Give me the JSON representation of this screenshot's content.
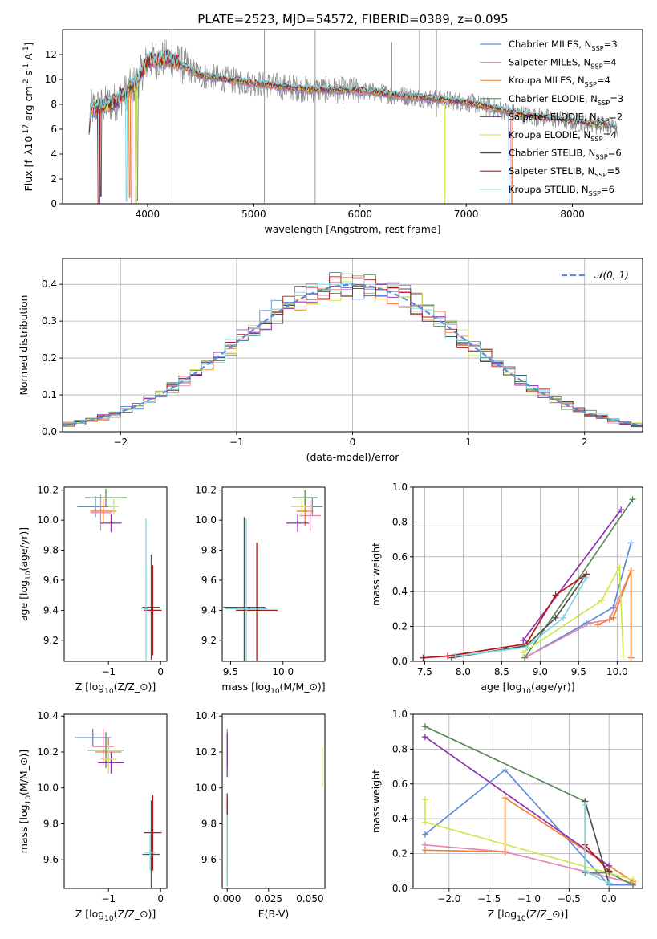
{
  "title": "PLATE=2523, MJD=54572, FIBERID=0389, z=0.095",
  "colors": [
    "#5b8bd9",
    "#e487b4",
    "#f08030",
    "#5a8a5a",
    "#9030b0",
    "#d0e850",
    "#505050",
    "#b01818",
    "#80d8e0"
  ],
  "legend_spectrum": [
    "Chabrier MILES, N_{SSP}=3",
    "Salpeter MILES, N_{SSP}=4",
    "Kroupa MILES, N_{SSP}=4",
    "Chabrier ELODIE, N_{SSP}=3",
    "Salpeter ELODIE, N_{SSP}=2",
    "Kroupa ELODIE, N_{SSP}=4",
    "Chabrier STELIB, N_{SSP}=6",
    "Salpeter STELIB, N_{SSP}=5",
    "Kroupa STELIB, N_{SSP}=6"
  ],
  "legend_residual": "𝒩(0, 1)",
  "chart_data": [
    {
      "type": "line",
      "id": "spectrum",
      "title": "PLATE=2523, MJD=54572, FIBERID=0389, z=0.095",
      "xlabel": "wavelength [Angstrom, rest frame]",
      "ylabel": "Flux [f_λ10^{-17} erg cm^{-2} s^{-1} A^{-1}]",
      "xlim": [
        3200,
        8660
      ],
      "ylim": [
        0,
        14
      ],
      "xticks": [
        4000,
        5000,
        6000,
        7000,
        8000
      ],
      "yticks": [
        0,
        2,
        4,
        6,
        8,
        10,
        12
      ],
      "continuum": [
        [
          3460,
          7.6
        ],
        [
          3700,
          8.2
        ],
        [
          3900,
          9.8
        ],
        [
          4000,
          11.5
        ],
        [
          4200,
          11.7
        ],
        [
          4500,
          10.3
        ],
        [
          5000,
          9.7
        ],
        [
          5500,
          9.2
        ],
        [
          6000,
          9.1
        ],
        [
          6500,
          8.6
        ],
        [
          7000,
          8.2
        ],
        [
          7500,
          7.2
        ],
        [
          8000,
          6.6
        ],
        [
          8400,
          6.2
        ]
      ],
      "grid": false,
      "legend": "upper right"
    },
    {
      "type": "line",
      "id": "residuals",
      "xlabel": "(data-model)/error",
      "ylabel": "Normed distribution",
      "xlim": [
        -2.5,
        2.5
      ],
      "ylim": [
        0,
        0.47
      ],
      "xticks": [
        -2,
        -1,
        0,
        1,
        2
      ],
      "yticks": [
        0.0,
        0.1,
        0.2,
        0.3,
        0.4
      ],
      "bins": 50,
      "grid": true,
      "legend": "upper right"
    },
    {
      "type": "scatter",
      "id": "age_vs_Z",
      "xlabel": "Z [log_{10}(Z/Z_⊙)]",
      "ylabel": "age  [log_{10}(age/yr)]",
      "xlim": [
        -1.85,
        0.12
      ],
      "ylim": [
        9.06,
        10.22
      ],
      "xticks": [
        -1,
        0
      ],
      "yticks": [
        9.2,
        9.4,
        9.6,
        9.8,
        10.0,
        10.2
      ],
      "points": [
        {
          "x": -1.25,
          "y": 10.09,
          "xerr": 0.35,
          "yerr": 0.07,
          "c": 0
        },
        {
          "x": -1.15,
          "y": 10.05,
          "xerr": 0.2,
          "yerr": 0.12,
          "c": 1
        },
        {
          "x": -1.1,
          "y": 10.06,
          "xerr": 0.25,
          "yerr": 0.08,
          "c": 2
        },
        {
          "x": -1.05,
          "y": 10.15,
          "xerr": 0.4,
          "yerr": 0.06,
          "c": 3
        },
        {
          "x": -0.95,
          "y": 9.98,
          "xerr": 0.2,
          "yerr": 0.06,
          "c": 4
        },
        {
          "x": -0.9,
          "y": 10.09,
          "xerr": 0.1,
          "yerr": 0.05,
          "c": 5
        },
        {
          "x": -0.18,
          "y": 9.42,
          "xerr": 0.17,
          "yerr": 0.35,
          "c": 6
        },
        {
          "x": -0.15,
          "y": 9.4,
          "xerr": 0.17,
          "yerr": 0.3,
          "c": 7
        },
        {
          "x": -0.28,
          "y": 9.41,
          "xerr": 0.04,
          "yerr": 0.6,
          "c": 8
        }
      ]
    },
    {
      "type": "scatter",
      "id": "age_vs_mass",
      "xlabel": "mass [log_{10}(M/M_⊙)]",
      "ylabel": "",
      "xlim": [
        9.42,
        10.4
      ],
      "ylim": [
        9.06,
        10.22
      ],
      "xticks": [
        9.5,
        10.0
      ],
      "yticks": [
        9.2,
        9.4,
        9.6,
        9.8,
        10.0,
        10.2
      ],
      "points": [
        {
          "x": 10.28,
          "y": 10.09,
          "xerr": 0.1,
          "yerr": 0.06,
          "c": 0
        },
        {
          "x": 10.26,
          "y": 10.03,
          "xerr": 0.1,
          "yerr": 0.1,
          "c": 1
        },
        {
          "x": 10.21,
          "y": 10.06,
          "xerr": 0.08,
          "yerr": 0.1,
          "c": 2
        },
        {
          "x": 10.21,
          "y": 10.15,
          "xerr": 0.12,
          "yerr": 0.05,
          "c": 3
        },
        {
          "x": 10.14,
          "y": 9.98,
          "xerr": 0.11,
          "yerr": 0.06,
          "c": 4
        },
        {
          "x": 10.18,
          "y": 10.09,
          "xerr": 0.1,
          "yerr": 0.05,
          "c": 5
        },
        {
          "x": 9.63,
          "y": 9.42,
          "xerr": 0.2,
          "yerr": 0.6,
          "c": 6
        },
        {
          "x": 9.75,
          "y": 9.4,
          "xerr": 0.2,
          "yerr": 0.45,
          "c": 7
        },
        {
          "x": 9.65,
          "y": 9.41,
          "xerr": 0.2,
          "yerr": 0.6,
          "c": 8
        }
      ]
    },
    {
      "type": "line",
      "id": "mw_vs_age",
      "xlabel": "age  [log_{10}(age/yr)]",
      "ylabel": "mass weight",
      "xlim": [
        7.35,
        10.33
      ],
      "ylim": [
        0.0,
        1.0
      ],
      "xticks": [
        7.5,
        8.0,
        8.5,
        9.0,
        9.5,
        10.0
      ],
      "yticks": [
        0.0,
        0.2,
        0.4,
        0.6,
        0.8,
        1.0
      ],
      "grid": true,
      "series": [
        {
          "c": 0,
          "x": [
            8.8,
            9.6,
            9.95,
            10.18
          ],
          "y": [
            0.02,
            0.22,
            0.31,
            0.68
          ]
        },
        {
          "c": 1,
          "x": [
            8.8,
            9.65,
            9.9,
            10.18
          ],
          "y": [
            0.02,
            0.22,
            0.24,
            0.52
          ]
        },
        {
          "c": 2,
          "x": [
            9.75,
            9.95,
            10.18,
            10.18
          ],
          "y": [
            0.21,
            0.25,
            0.52,
            0.02
          ]
        },
        {
          "c": 3,
          "x": [
            8.8,
            10.2
          ],
          "y": [
            0.02,
            0.93
          ]
        },
        {
          "c": 4,
          "x": [
            8.78,
            10.05
          ],
          "y": [
            0.12,
            0.87
          ]
        },
        {
          "c": 5,
          "x": [
            8.78,
            9.8,
            10.03,
            10.08
          ],
          "y": [
            0.05,
            0.35,
            0.54,
            0.03
          ]
        },
        {
          "c": 6,
          "x": [
            7.85,
            8.82,
            9.2,
            9.6
          ],
          "y": [
            0.02,
            0.09,
            0.25,
            0.5
          ]
        },
        {
          "c": 7,
          "x": [
            7.48,
            7.8,
            8.82,
            9.2,
            9.6
          ],
          "y": [
            0.02,
            0.03,
            0.1,
            0.38,
            0.5
          ]
        },
        {
          "c": 8,
          "x": [
            7.9,
            8.82,
            9.3,
            9.6
          ],
          "y": [
            0.03,
            0.08,
            0.25,
            0.48
          ]
        }
      ]
    },
    {
      "type": "scatter",
      "id": "mass_vs_Z",
      "xlabel": "Z [log_{10}(Z/Z_⊙)]",
      "ylabel": "mass [log_{10}(M/M_⊙)]",
      "xlim": [
        -1.85,
        0.12
      ],
      "ylim": [
        9.44,
        10.41
      ],
      "xticks": [
        -1,
        0
      ],
      "yticks": [
        9.6,
        9.8,
        10.0,
        10.2,
        10.4
      ],
      "points": [
        {
          "x": -1.3,
          "y": 10.28,
          "xerr": 0.35,
          "yerr": 0.05,
          "c": 0
        },
        {
          "x": -1.1,
          "y": 10.23,
          "xerr": 0.2,
          "yerr": 0.1,
          "c": 1
        },
        {
          "x": -1.0,
          "y": 10.2,
          "xerr": 0.25,
          "yerr": 0.08,
          "c": 2
        },
        {
          "x": -1.05,
          "y": 10.21,
          "xerr": 0.35,
          "yerr": 0.1,
          "c": 3
        },
        {
          "x": -0.95,
          "y": 10.14,
          "xerr": 0.25,
          "yerr": 0.06,
          "c": 4
        },
        {
          "x": -1.0,
          "y": 10.16,
          "xerr": 0.15,
          "yerr": 0.08,
          "c": 5
        },
        {
          "x": -0.18,
          "y": 9.63,
          "xerr": 0.17,
          "yerr": 0.3,
          "c": 6
        },
        {
          "x": -0.15,
          "y": 9.75,
          "xerr": 0.17,
          "yerr": 0.21,
          "c": 7
        },
        {
          "x": -0.2,
          "y": 9.64,
          "xerr": 0.1,
          "yerr": 0.1,
          "c": 8
        }
      ]
    },
    {
      "type": "scatter",
      "id": "mass_vs_ebv",
      "xlabel": "E(B-V)",
      "ylabel": "",
      "xlim": [
        -0.003,
        0.059
      ],
      "ylim": [
        9.44,
        10.41
      ],
      "xticks": [
        0.0,
        0.025,
        0.05
      ],
      "xticklabels": [
        "0.000",
        "0.025",
        "0.050"
      ],
      "yticks": [
        9.6,
        9.8,
        10.0,
        10.2,
        10.4
      ],
      "points": [
        {
          "x": 0.0,
          "y": 10.28,
          "yerr": 0.05,
          "c": 0
        },
        {
          "x": 0.0,
          "y": 10.23,
          "yerr": 0.1,
          "c": 1
        },
        {
          "x": 0.0,
          "y": 10.2,
          "yerr": 0.08,
          "c": 2
        },
        {
          "x": 0.0,
          "y": 10.21,
          "yerr": 0.1,
          "c": 3
        },
        {
          "x": 0.0,
          "y": 10.18,
          "yerr": 0.12,
          "c": 4
        },
        {
          "x": 0.0575,
          "y": 10.12,
          "yerr": 0.11,
          "c": 5
        },
        {
          "x": 0.0,
          "y": 9.7,
          "yerr": 0.24,
          "c": 6
        },
        {
          "x": 0.0,
          "y": 9.75,
          "yerr": 0.22,
          "c": 7
        },
        {
          "x": 0.0,
          "y": 9.65,
          "yerr": 0.2,
          "c": 8
        }
      ]
    },
    {
      "type": "line",
      "id": "mw_vs_Z",
      "xlabel": "Z [log_{10}(Z/Z_⊙)]",
      "ylabel": "mass weight",
      "xlim": [
        -2.45,
        0.42
      ],
      "ylim": [
        0.0,
        1.0
      ],
      "xticks": [
        -2.0,
        -1.5,
        -1.0,
        -0.5,
        0.0
      ],
      "yticks": [
        0.0,
        0.2,
        0.4,
        0.6,
        0.8,
        1.0
      ],
      "grid": true,
      "series": [
        {
          "c": 0,
          "x": [
            -2.3,
            -1.3,
            0.0,
            0.3
          ],
          "y": [
            0.31,
            0.68,
            0.02,
            0.02
          ]
        },
        {
          "c": 1,
          "x": [
            -2.3,
            -1.3,
            0.3
          ],
          "y": [
            0.25,
            0.21,
            0.03
          ]
        },
        {
          "c": 2,
          "x": [
            -2.3,
            -1.3,
            -1.3,
            0.3
          ],
          "y": [
            0.22,
            0.21,
            0.52,
            0.04
          ]
        },
        {
          "c": 3,
          "x": [
            -2.3,
            -0.3,
            -0.3,
            0.0,
            0.3
          ],
          "y": [
            0.93,
            0.5,
            0.09,
            0.09,
            0.02
          ]
        },
        {
          "c": 4,
          "x": [
            -2.3,
            0.0
          ],
          "y": [
            0.87,
            0.13
          ]
        },
        {
          "c": 5,
          "x": [
            -2.3,
            -2.3,
            0.3
          ],
          "y": [
            0.51,
            0.38,
            0.05
          ]
        },
        {
          "c": 6,
          "x": [
            -0.3,
            -0.3,
            0.0
          ],
          "y": [
            0.1,
            0.5,
            0.03
          ]
        },
        {
          "c": 7,
          "x": [
            -0.3,
            0.0
          ],
          "y": [
            0.25,
            0.1
          ]
        },
        {
          "c": 8,
          "x": [
            -0.3,
            -0.3,
            0.0
          ],
          "y": [
            0.48,
            0.1,
            0.03
          ]
        }
      ]
    }
  ]
}
